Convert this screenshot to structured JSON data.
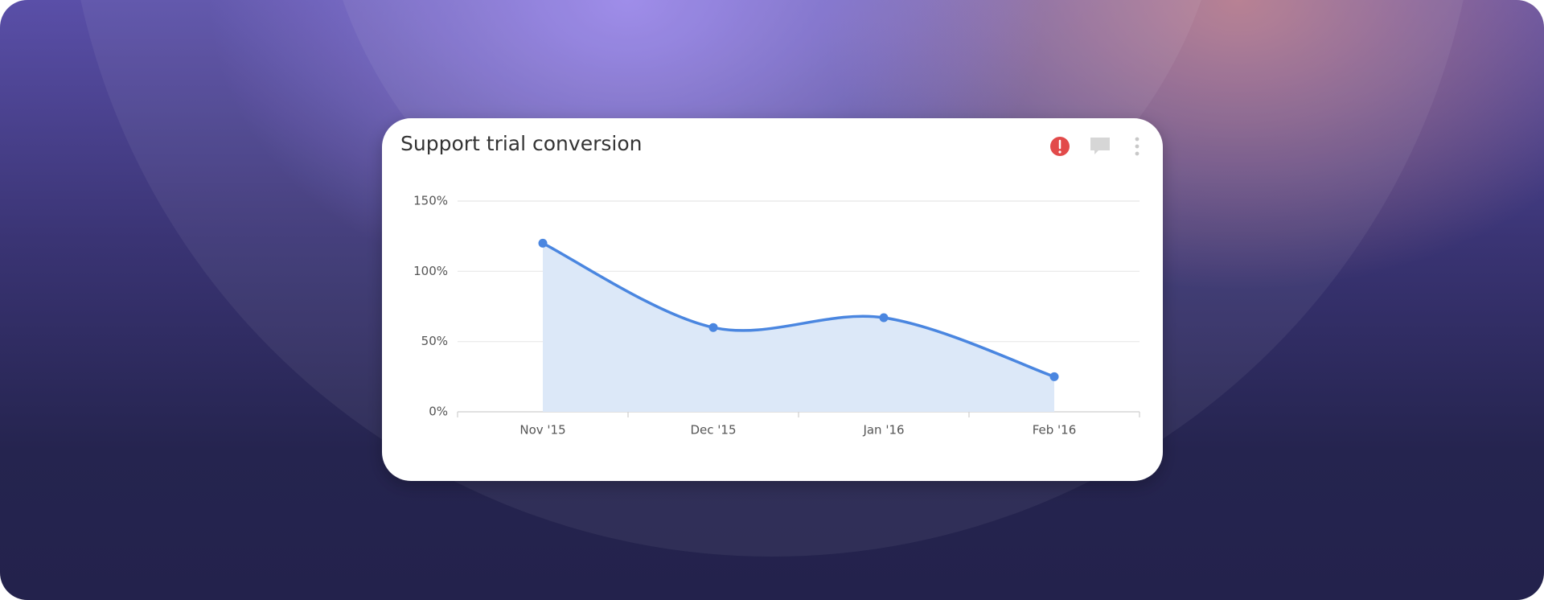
{
  "chart_data": {
    "type": "area",
    "title": "Support trial conversion",
    "categories": [
      "Nov '15",
      "Dec '15",
      "Jan '16",
      "Feb '16"
    ],
    "values": [
      120,
      60,
      67,
      25
    ],
    "color": "#4a86e0",
    "fill_color": "#dce8f8",
    "ylim": [
      0,
      150
    ],
    "yticks": [
      {
        "value": 0,
        "label": "0%"
      },
      {
        "value": 50,
        "label": "50%"
      },
      {
        "value": 100,
        "label": "100%"
      },
      {
        "value": 150,
        "label": "150%"
      }
    ],
    "grid": true
  }
}
